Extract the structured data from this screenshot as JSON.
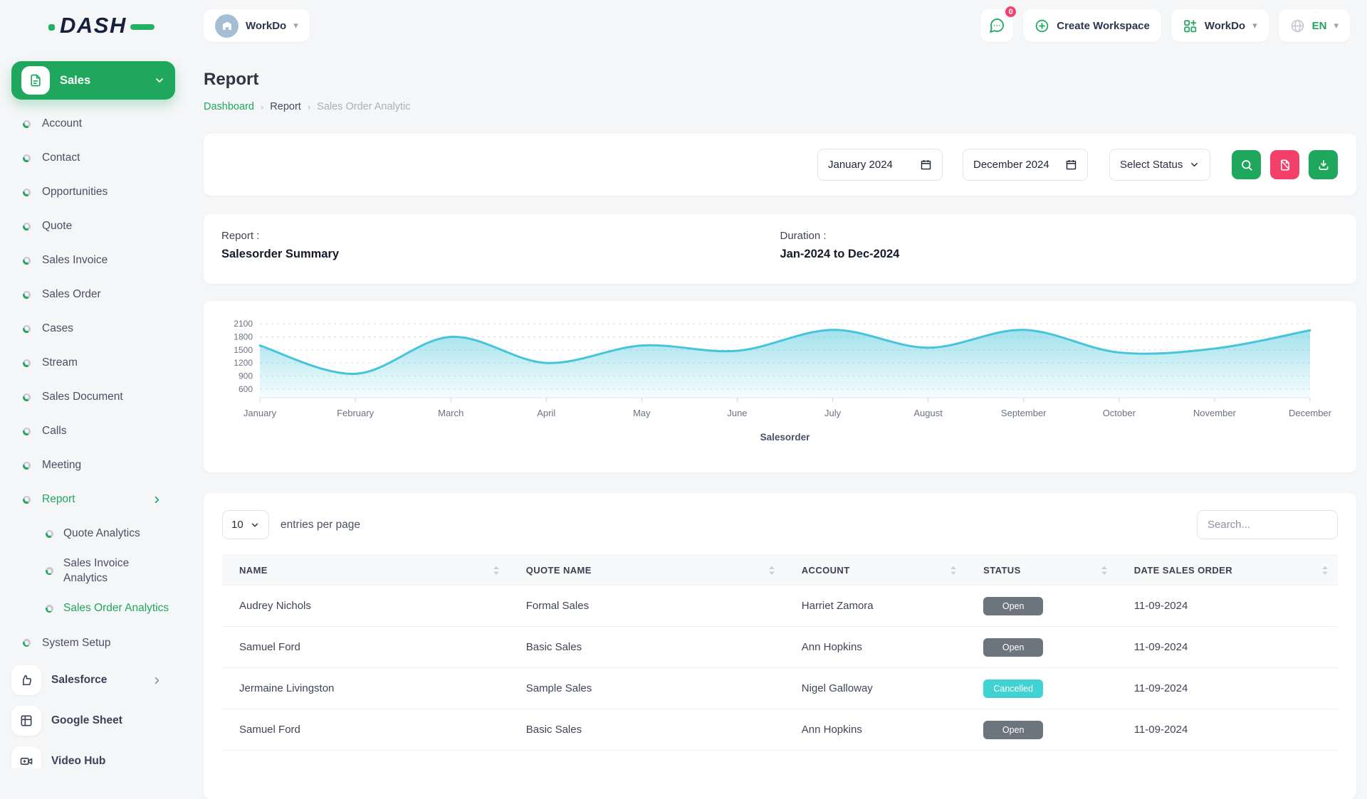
{
  "colors": {
    "primary_green": "#1fa75d",
    "logo_navy": "#16203e",
    "chart_teal": "#46c4da",
    "pink": "#f3406b",
    "badge_gray": "#6c757d",
    "badge_cyan": "#41d2d2",
    "page_bg": "#f5f6f8"
  },
  "topbar": {
    "logo_text": "DASH",
    "workspace_switcher": {
      "label": "WorkDo",
      "avatar_icon": "building-icon"
    },
    "chat": {
      "badge_count": "0",
      "icon": "chat-icon"
    },
    "create_workspace_label": "Create Workspace",
    "app_dropdown_label": "WorkDo",
    "language": {
      "code": "EN",
      "icon": "globe-icon"
    }
  },
  "sidebar": {
    "module_header": {
      "label": "Sales",
      "icon": "document-icon"
    },
    "menu_items": [
      {
        "label": "Account"
      },
      {
        "label": "Contact"
      },
      {
        "label": "Opportunities"
      },
      {
        "label": "Quote"
      },
      {
        "label": "Sales Invoice"
      },
      {
        "label": "Sales Order"
      },
      {
        "label": "Cases"
      },
      {
        "label": "Stream"
      },
      {
        "label": "Sales Document"
      },
      {
        "label": "Calls"
      },
      {
        "label": "Meeting"
      },
      {
        "label": "Report",
        "active": true,
        "chevron": "right",
        "children": [
          {
            "label": "Quote Analytics"
          },
          {
            "label": "Sales Invoice Analytics"
          },
          {
            "label": "Sales Order Analytics",
            "active": true
          }
        ]
      },
      {
        "label": "System Setup"
      }
    ],
    "module_items": [
      {
        "label": "Salesforce",
        "icon": "thumbs-up-icon",
        "chevron": "right"
      },
      {
        "label": "Google Sheet",
        "icon": "sheet-icon"
      },
      {
        "label": "Video Hub",
        "icon": "video-icon"
      }
    ]
  },
  "page_header": {
    "title": "Report",
    "breadcrumb": [
      {
        "label": "Dashboard"
      },
      {
        "label": "Report"
      },
      {
        "label": "Sales Order Analytic"
      }
    ]
  },
  "filter_bar": {
    "start_month": "January 2024",
    "end_month": "December 2024",
    "status_select": "Select Status",
    "buttons": [
      {
        "name": "search",
        "icon": "search-icon",
        "color": "green"
      },
      {
        "name": "clear-filter",
        "icon": "file-off-icon",
        "color": "pink"
      },
      {
        "name": "download",
        "icon": "download-icon",
        "color": "green"
      }
    ]
  },
  "summary_card": {
    "report_label": "Report :",
    "report_value": "Salesorder Summary",
    "duration_label": "Duration :",
    "duration_value": "Jan-2024 to Dec-2024"
  },
  "chart_data": {
    "type": "area",
    "title": "",
    "x_axis_title": "Salesorder",
    "categories": [
      "January",
      "February",
      "March",
      "April",
      "May",
      "June",
      "July",
      "August",
      "September",
      "October",
      "November",
      "December"
    ],
    "series": [
      {
        "name": "Salesorder",
        "values": [
          1600,
          950,
          1800,
          1200,
          1600,
          1480,
          1960,
          1550,
          1960,
          1440,
          1530,
          1950
        ]
      }
    ],
    "y_ticks": [
      600,
      900,
      1200,
      1500,
      1800,
      2100
    ],
    "y_min": 400,
    "y_max": 2200,
    "grid": "dashed-horizontal",
    "legend_position": "none",
    "line_color": "#46c4da",
    "fill": "teal-gradient"
  },
  "table_card": {
    "page_size": "10",
    "entries_label": "entries per page",
    "search_placeholder": "Search...",
    "columns": [
      "NAME",
      "QUOTE NAME",
      "ACCOUNT",
      "STATUS",
      "DATE SALES ORDER"
    ],
    "col_widths": [
      "25.7%",
      "24.7%",
      "16.3%",
      "13.5%",
      "19.8%"
    ],
    "rows": [
      {
        "name": "Audrey Nichols",
        "quote_name": "Formal Sales",
        "account": "Harriet Zamora",
        "status": "Open",
        "status_color": "gray",
        "date": "11-09-2024"
      },
      {
        "name": "Samuel Ford",
        "quote_name": "Basic Sales",
        "account": "Ann Hopkins",
        "status": "Open",
        "status_color": "gray",
        "date": "11-09-2024"
      },
      {
        "name": "Jermaine Livingston",
        "quote_name": "Sample Sales",
        "account": "Nigel Galloway",
        "status": "Cancelled",
        "status_color": "cyan",
        "date": "11-09-2024"
      },
      {
        "name": "Samuel Ford",
        "quote_name": "Basic Sales",
        "account": "Ann Hopkins",
        "status": "Open",
        "status_color": "gray",
        "date": "11-09-2024"
      }
    ]
  }
}
